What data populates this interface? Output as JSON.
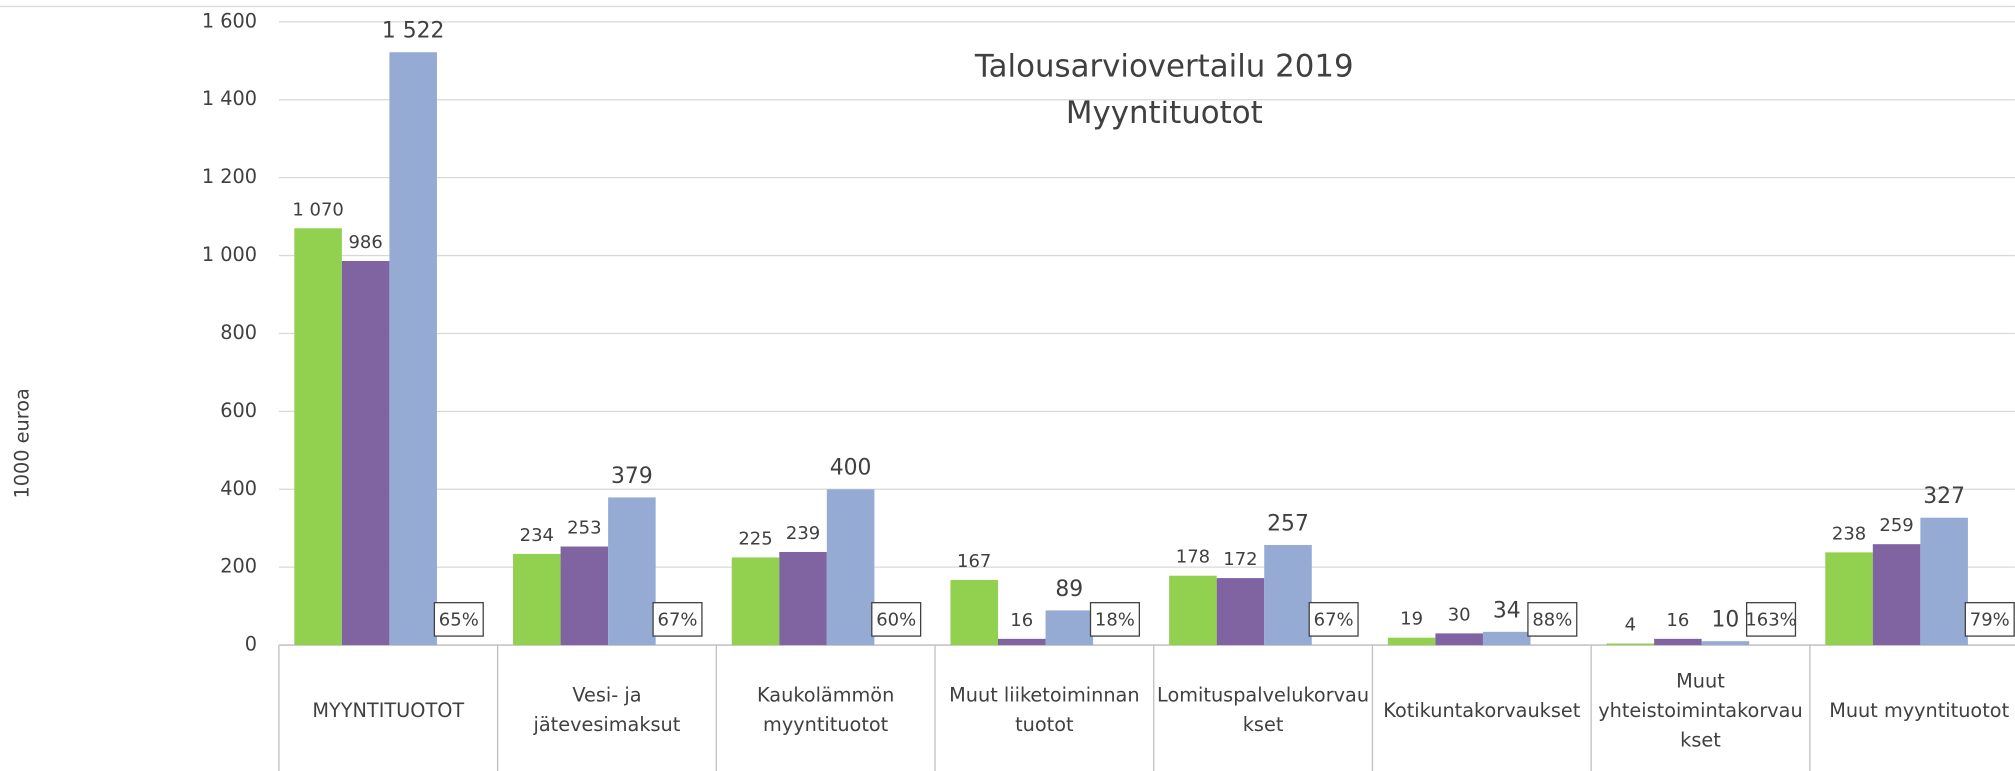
{
  "chart_data": {
    "type": "bar",
    "title": "Talousarviovertailu 2019",
    "subtitle": "Myyntituotot",
    "y_label": "1000 euroa",
    "categories": [
      "MYYNTITUOTOT",
      "Vesi- ja jätevesimaksut",
      "Kaukolämmön myyntituotot",
      "Muut liiketoiminnan tuotot",
      "Lomituspalvelukorvaukset",
      "Kotikuntakorvaukset",
      "Muut yhteistoimintakorvaukset",
      "Muut myyntituotot"
    ],
    "series": [
      {
        "color": "#92d050",
        "values": [
          1070,
          234,
          225,
          167,
          178,
          19,
          4,
          238
        ],
        "value_labels": [
          "1 070",
          "234",
          "225",
          "167",
          "178",
          "19",
          "4",
          "238"
        ]
      },
      {
        "color": "#8064a2",
        "values": [
          986,
          253,
          239,
          16,
          172,
          30,
          16,
          259
        ],
        "value_labels": [
          "986",
          "253",
          "239",
          "16",
          "172",
          "30",
          "16",
          "259"
        ]
      },
      {
        "color": "#95abd4",
        "values": [
          1522,
          379,
          400,
          89,
          257,
          34,
          10,
          327
        ],
        "value_labels": [
          "1 522",
          "379",
          "400",
          "89",
          "257",
          "34",
          "10",
          "327"
        ]
      }
    ],
    "ratio_labels": [
      "65%",
      "67%",
      "60%",
      "18%",
      "67%",
      "88%",
      "163%",
      "79%"
    ],
    "ylim": [
      0,
      1600
    ],
    "yticks": [
      0,
      200,
      400,
      600,
      800,
      {
        "value": 1000,
        "label": "1 000"
      },
      {
        "value": 1200,
        "label": "1 200"
      },
      {
        "value": 1400,
        "label": "1 400"
      },
      {
        "value": 1600,
        "label": "1 600"
      }
    ],
    "grid": true
  }
}
